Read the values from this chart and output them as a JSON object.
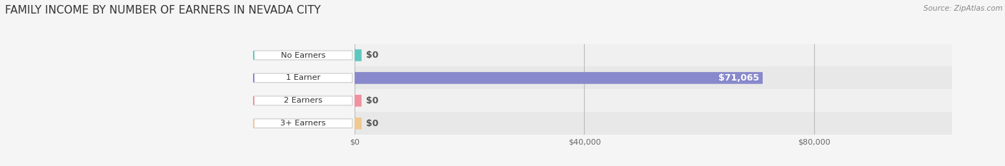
{
  "title": "FAMILY INCOME BY NUMBER OF EARNERS IN NEVADA CITY",
  "source": "Source: ZipAtlas.com",
  "categories": [
    "No Earners",
    "1 Earner",
    "2 Earners",
    "3+ Earners"
  ],
  "values": [
    0,
    71065,
    0,
    0
  ],
  "max_value": 80000,
  "bar_colors": [
    "#5ec8c0",
    "#8888cc",
    "#f090a0",
    "#f0c890"
  ],
  "bar_labels": [
    "$0",
    "$71,065",
    "$0",
    "$0"
  ],
  "x_ticks": [
    0,
    40000,
    80000
  ],
  "x_tick_labels": [
    "$0",
    "$40,000",
    "$80,000"
  ],
  "bg_color": "#f5f5f5",
  "row_bg_colors": [
    "#f0f0f0",
    "#e8e8e8",
    "#f0f0f0",
    "#e8e8e8"
  ],
  "title_fontsize": 11,
  "label_fontsize": 9,
  "bar_height": 0.52,
  "figsize": [
    14.06,
    2.33
  ]
}
